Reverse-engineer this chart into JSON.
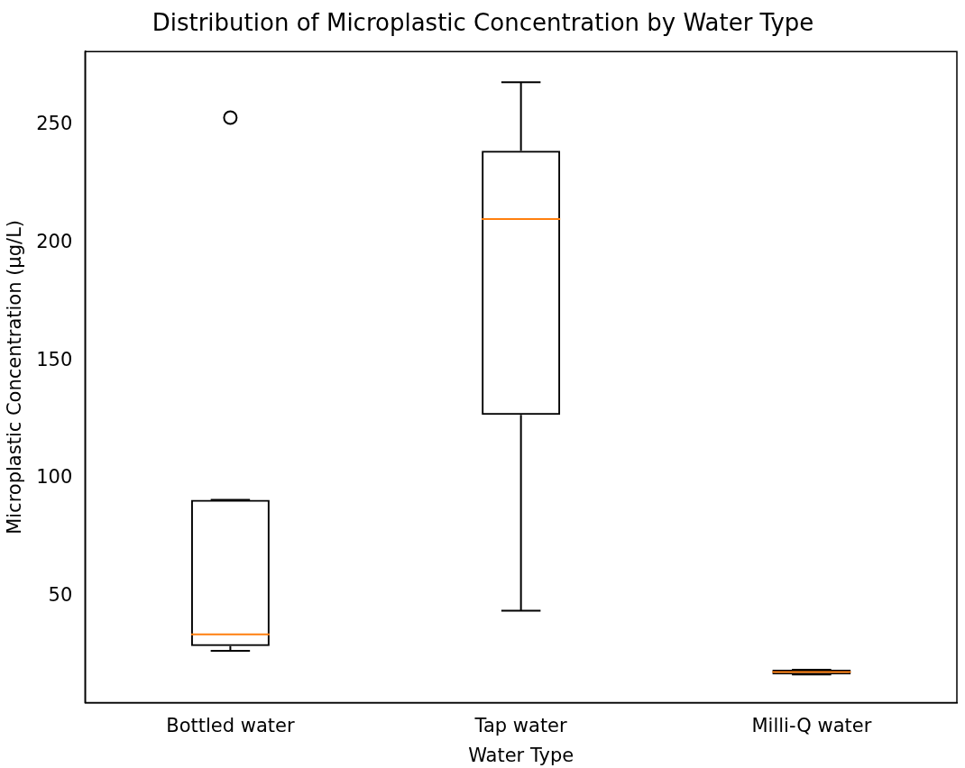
{
  "chart_data": {
    "type": "box",
    "title": "Distribution of Microplastic Concentration by Water Type",
    "xlabel": "Water Type",
    "ylabel": "Microplastic Concentration (µg/L)",
    "categories": [
      "Bottled water",
      "Tap water",
      "Milli-Q water"
    ],
    "boxes": [
      {
        "low": 27,
        "q1": 29,
        "median": 34,
        "q3": 91,
        "high": 91,
        "outliers": [
          253
        ]
      },
      {
        "low": 44,
        "q1": 127,
        "median": 210,
        "q3": 239,
        "high": 268
      },
      {
        "low": 17,
        "q1": 17,
        "median": 18,
        "q3": 19,
        "high": 19
      }
    ],
    "color": "#000000",
    "ylim": [
      5,
      281
    ],
    "yticks": [
      50,
      100,
      150,
      200,
      250
    ],
    "grid": false,
    "legend": false
  }
}
